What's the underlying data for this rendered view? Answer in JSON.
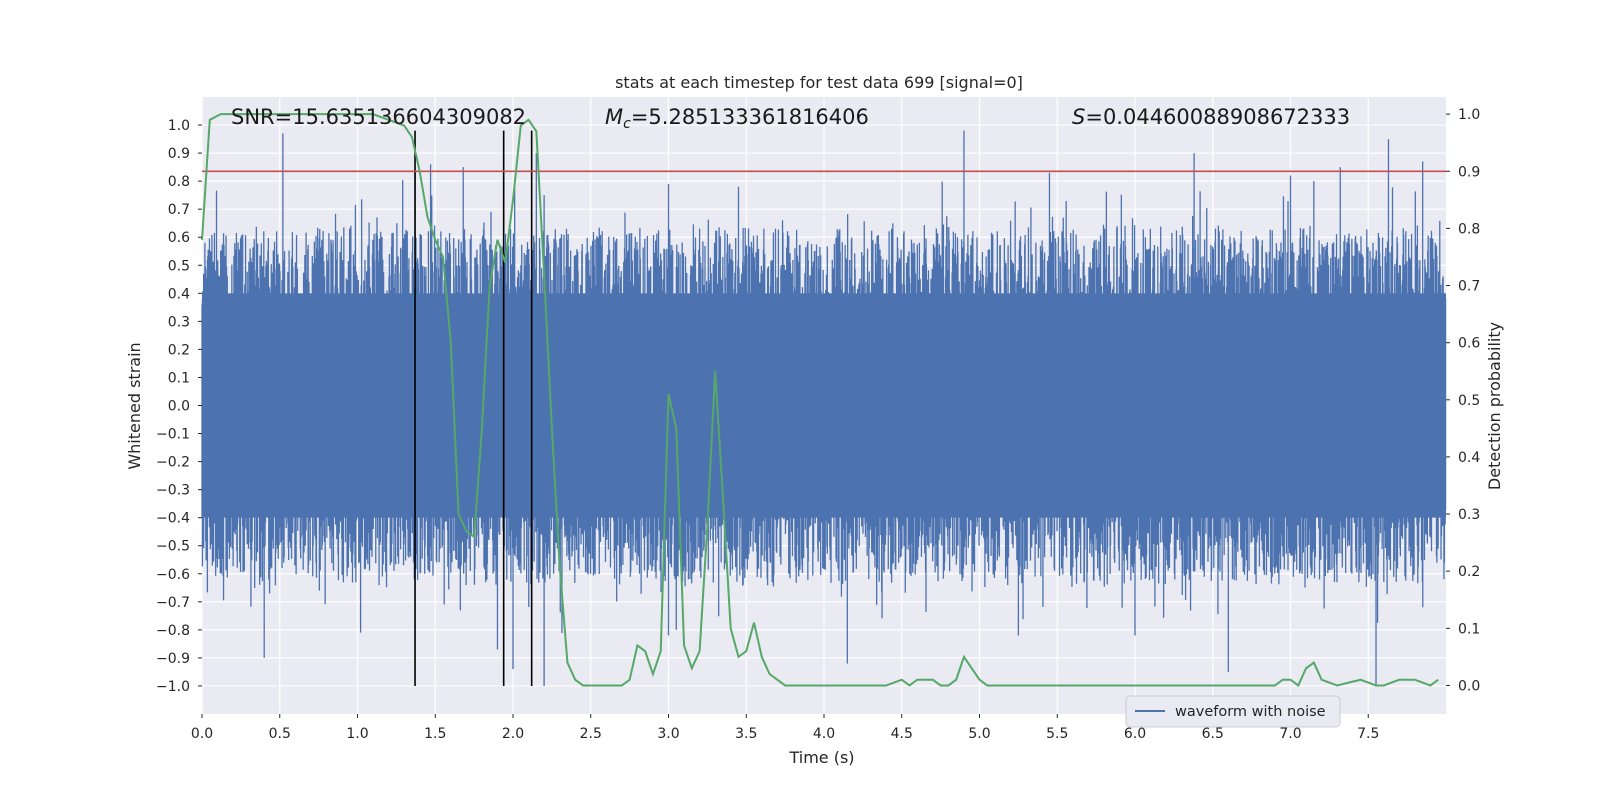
{
  "chart_data": {
    "type": "line",
    "title": "stats at each timestep for test data 699 [signal=0]",
    "xlabel": "Time (s)",
    "ylabel": "Whitened strain",
    "y2label": "Detection probability",
    "xlim": [
      0.0,
      8.0
    ],
    "ylim": [
      -1.1,
      1.1
    ],
    "y2lim": [
      -0.05,
      1.03
    ],
    "xticks": [
      "0.0",
      "0.5",
      "1.0",
      "1.5",
      "2.0",
      "2.5",
      "3.0",
      "3.5",
      "4.0",
      "4.5",
      "5.0",
      "5.5",
      "6.0",
      "6.5",
      "7.0",
      "7.5"
    ],
    "xtick_values": [
      0.0,
      0.5,
      1.0,
      1.5,
      2.0,
      2.5,
      3.0,
      3.5,
      4.0,
      4.5,
      5.0,
      5.5,
      6.0,
      6.5,
      7.0,
      7.5
    ],
    "yticks": [
      "1.0",
      "0.9",
      "0.8",
      "0.7",
      "0.6",
      "0.5",
      "0.4",
      "0.3",
      "0.2",
      "0.1",
      "0.0",
      "−0.1",
      "−0.2",
      "−0.3",
      "−0.4",
      "−0.5",
      "−0.6",
      "−0.7",
      "−0.8",
      "−0.9",
      "−1.0"
    ],
    "ytick_values": [
      1.0,
      0.9,
      0.8,
      0.7,
      0.6,
      0.5,
      0.4,
      0.3,
      0.2,
      0.1,
      0.0,
      -0.1,
      -0.2,
      -0.3,
      -0.4,
      -0.5,
      -0.6,
      -0.7,
      -0.8,
      -0.9,
      -1.0
    ],
    "y2ticks": [
      "1.0",
      "0.9",
      "0.8",
      "0.7",
      "0.6",
      "0.5",
      "0.4",
      "0.3",
      "0.2",
      "0.1",
      "0.0"
    ],
    "y2tick_values": [
      1.0,
      0.9,
      0.8,
      0.7,
      0.6,
      0.5,
      0.4,
      0.3,
      0.2,
      0.1,
      0.0
    ],
    "annotations": {
      "snr": "SNR=15.635136604309082",
      "mc_symbol": "M",
      "mc_sub": "c",
      "mc_value": "=5.285133361816406",
      "s_symbol": "S",
      "s_value": "=0.04460088908672333"
    },
    "threshold": {
      "value": 0.9,
      "axis": "y2",
      "color": "#c44e52"
    },
    "vlines": [
      1.37,
      1.94,
      2.12
    ],
    "vline_range": [
      -1.0,
      0.98
    ],
    "legend": {
      "label": "waveform with noise",
      "position": "lower-right"
    },
    "series": [
      {
        "name": "waveform with noise",
        "axis": "y1",
        "color": "#4c72b0",
        "kind": "noise-band",
        "band_limit": 0.4,
        "spikes": [
          {
            "x": 0.52,
            "y": 0.97
          },
          {
            "x": 0.4,
            "y": -0.9
          },
          {
            "x": 1.02,
            "y": -0.81
          },
          {
            "x": 1.37,
            "y": 0.83
          },
          {
            "x": 1.47,
            "y": 0.86
          },
          {
            "x": 1.68,
            "y": 0.85
          },
          {
            "x": 1.9,
            "y": -0.87
          },
          {
            "x": 2.0,
            "y": -0.94
          },
          {
            "x": 2.2,
            "y": -1.0
          },
          {
            "x": 2.15,
            "y": 0.9
          },
          {
            "x": 3.0,
            "y": 0.79
          },
          {
            "x": 3.0,
            "y": -0.82
          },
          {
            "x": 3.45,
            "y": 0.78
          },
          {
            "x": 3.05,
            "y": -0.8
          },
          {
            "x": 4.15,
            "y": -0.92
          },
          {
            "x": 4.9,
            "y": 0.98
          },
          {
            "x": 5.25,
            "y": -0.82
          },
          {
            "x": 5.45,
            "y": 0.83
          },
          {
            "x": 6.0,
            "y": -0.82
          },
          {
            "x": 6.38,
            "y": 0.9
          },
          {
            "x": 6.6,
            "y": -0.95
          },
          {
            "x": 7.0,
            "y": 0.82
          },
          {
            "x": 7.15,
            "y": 0.8
          },
          {
            "x": 7.55,
            "y": -1.0
          },
          {
            "x": 7.63,
            "y": 0.95
          },
          {
            "x": 7.85,
            "y": 0.87
          },
          {
            "x": 7.32,
            "y": 0.85
          },
          {
            "x": 2.2,
            "y": 0.75
          }
        ]
      },
      {
        "name": "detection probability",
        "axis": "y2",
        "color": "#55a868",
        "x": [
          0.0,
          0.05,
          0.12,
          0.3,
          0.5,
          0.7,
          0.9,
          1.1,
          1.2,
          1.3,
          1.35,
          1.4,
          1.45,
          1.5,
          1.55,
          1.6,
          1.65,
          1.7,
          1.75,
          1.8,
          1.85,
          1.9,
          1.95,
          2.0,
          2.05,
          2.1,
          2.15,
          2.2,
          2.25,
          2.3,
          2.35,
          2.4,
          2.45,
          2.5,
          2.7,
          2.75,
          2.8,
          2.85,
          2.9,
          2.95,
          3.0,
          3.05,
          3.1,
          3.15,
          3.2,
          3.25,
          3.3,
          3.35,
          3.4,
          3.45,
          3.5,
          3.55,
          3.6,
          3.65,
          3.7,
          3.75,
          3.8,
          3.85,
          3.9,
          3.95,
          4.0,
          4.1,
          4.2,
          4.3,
          4.4,
          4.5,
          4.55,
          4.6,
          4.7,
          4.75,
          4.8,
          4.85,
          4.9,
          4.95,
          5.0,
          5.05,
          5.1,
          5.15,
          5.2,
          5.3,
          5.5,
          6.0,
          6.5,
          6.8,
          6.9,
          6.95,
          7.0,
          7.05,
          7.1,
          7.15,
          7.2,
          7.3,
          7.45,
          7.55,
          7.6,
          7.7,
          7.8,
          7.9,
          7.95
        ],
        "y": [
          0.78,
          0.99,
          1.0,
          1.0,
          1.0,
          1.0,
          1.0,
          1.0,
          0.99,
          0.98,
          0.96,
          0.9,
          0.82,
          0.78,
          0.75,
          0.6,
          0.3,
          0.27,
          0.26,
          0.45,
          0.7,
          0.78,
          0.74,
          0.85,
          0.98,
          0.99,
          0.97,
          0.72,
          0.45,
          0.21,
          0.04,
          0.01,
          0.0,
          0.0,
          0.0,
          0.01,
          0.07,
          0.06,
          0.02,
          0.06,
          0.51,
          0.45,
          0.07,
          0.03,
          0.06,
          0.28,
          0.55,
          0.33,
          0.1,
          0.05,
          0.06,
          0.11,
          0.05,
          0.02,
          0.01,
          0.0,
          0.0,
          0.0,
          0.0,
          0.0,
          0.0,
          0.0,
          0.0,
          0.0,
          0.0,
          0.01,
          0.0,
          0.01,
          0.01,
          0.0,
          0.0,
          0.01,
          0.05,
          0.03,
          0.01,
          0.0,
          0.0,
          0.0,
          0.0,
          0.0,
          0.0,
          0.0,
          0.0,
          0.0,
          0.0,
          0.01,
          0.01,
          0.0,
          0.03,
          0.04,
          0.01,
          0.0,
          0.01,
          0.0,
          0.0,
          0.01,
          0.01,
          0.0,
          0.01
        ]
      }
    ]
  }
}
